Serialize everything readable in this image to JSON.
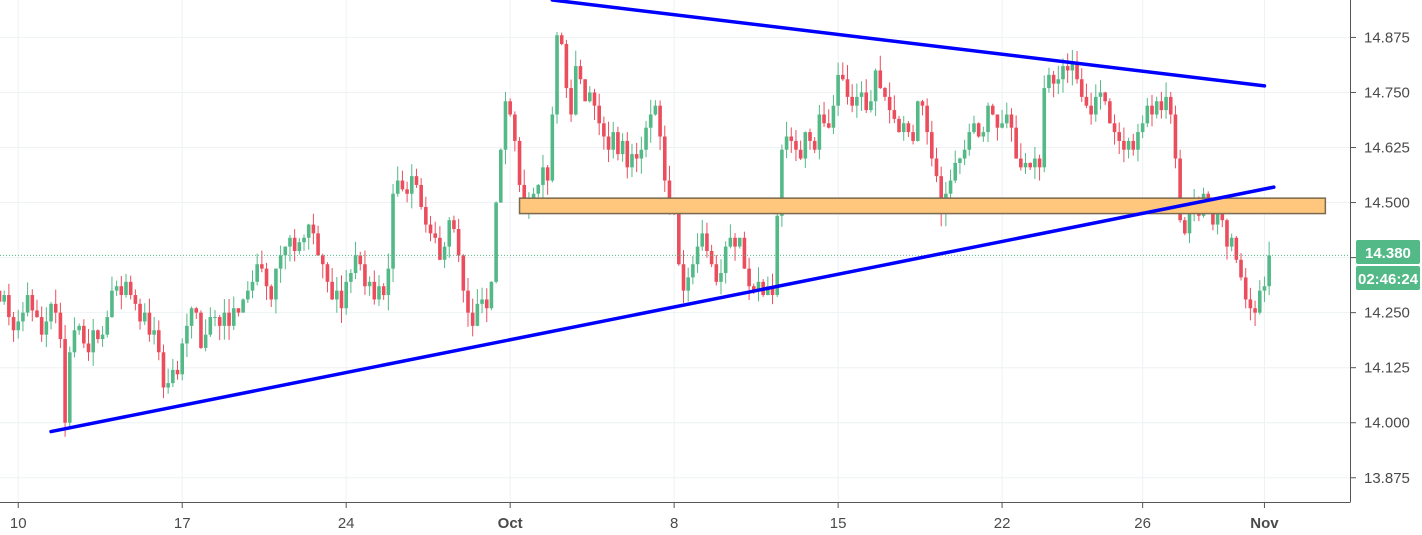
{
  "chart_data": {
    "type": "candlestick",
    "title": "",
    "xlabel": "",
    "ylabel": "",
    "ylim": [
      13.82,
      14.96
    ],
    "y_ticks": [
      "14.875",
      "14.750",
      "14.625",
      "14.500",
      "14.375",
      "14.250",
      "14.125",
      "14.000",
      "13.875"
    ],
    "y_tick_values": [
      14.875,
      14.75,
      14.625,
      14.5,
      14.375,
      14.25,
      14.125,
      14.0,
      13.875
    ],
    "x_ticks": [
      {
        "label": "10",
        "bar": 4,
        "bold": false
      },
      {
        "label": "17",
        "bar": 39,
        "bold": false
      },
      {
        "label": "24",
        "bar": 74,
        "bold": false
      },
      {
        "label": "Oct",
        "bar": 109,
        "bold": true
      },
      {
        "label": "8",
        "bar": 144,
        "bold": false
      },
      {
        "label": "15",
        "bar": 179,
        "bold": false
      },
      {
        "label": "22",
        "bar": 214,
        "bold": false
      },
      {
        "label": "26",
        "bar": 244,
        "bold": false
      },
      {
        "label": "Nov",
        "bar": 270,
        "bold": true
      }
    ],
    "grid": true,
    "last_price": "14.380",
    "last_price_value": 14.38,
    "countdown": "02:46:24",
    "colors": {
      "up": "#53b987",
      "down": "#eb4d5c",
      "trendline": "#0000ff",
      "zone_fill": "#ffc77d",
      "zone_border": "#7a6a4f",
      "grid": "#eef2f5",
      "axis": "#555555",
      "price_line": "#53b987"
    },
    "trendlines": [
      {
        "name": "support",
        "from": {
          "bar": 11,
          "price": 13.98
        },
        "to": {
          "bar": 272,
          "price": 14.535
        }
      },
      {
        "name": "resistance",
        "from": {
          "bar": 118,
          "price": 14.96
        },
        "to": {
          "bar": 270,
          "price": 14.765
        }
      }
    ],
    "zone": {
      "from_bar": 111,
      "to_bar": 283,
      "top": 14.51,
      "bottom": 14.475
    },
    "trend_open": 14.3,
    "trend_closes": [
      14.275,
      14.29,
      14.24,
      14.21,
      14.23,
      14.25,
      14.29,
      14.255,
      14.24,
      14.2,
      14.23,
      14.27,
      14.25,
      14.19,
      14.0,
      14.16,
      14.21,
      14.22,
      14.18,
      14.16,
      14.21,
      14.19,
      14.2,
      14.24,
      14.3,
      14.31,
      14.29,
      14.32,
      14.29,
      14.27,
      14.23,
      14.25,
      14.2,
      14.21,
      14.16,
      14.08,
      14.09,
      14.12,
      14.11,
      14.18,
      14.22,
      14.26,
      14.25,
      14.17,
      14.2,
      14.24,
      14.24,
      14.22,
      14.25,
      14.22,
      14.26,
      14.25,
      14.28,
      14.3,
      14.32,
      14.36,
      14.35,
      14.31,
      14.28,
      14.35,
      14.38,
      14.4,
      14.42,
      14.39,
      14.41,
      14.42,
      14.45,
      14.43,
      14.38,
      14.36,
      14.32,
      14.28,
      14.3,
      14.26,
      14.32,
      14.34,
      14.38,
      14.36,
      14.31,
      14.32,
      14.28,
      14.31,
      14.29,
      14.35,
      14.52,
      14.55,
      14.53,
      14.52,
      14.56,
      14.54,
      14.49,
      14.45,
      14.43,
      14.42,
      14.37,
      14.4,
      14.46,
      14.44,
      14.38,
      14.3,
      14.25,
      14.22,
      14.27,
      14.28,
      14.26,
      14.32,
      14.5,
      14.62,
      14.73,
      14.7,
      14.64,
      14.54,
      14.49,
      14.5,
      14.52,
      14.54,
      14.58,
      14.55,
      14.7,
      14.88,
      14.86,
      14.76,
      14.7,
      14.81,
      14.78,
      14.73,
      14.75,
      14.72,
      14.68,
      14.65,
      14.62,
      14.66,
      14.61,
      14.64,
      14.58,
      14.61,
      14.6,
      14.62,
      14.67,
      14.7,
      14.72,
      14.65,
      14.55,
      14.5,
      14.48,
      14.36,
      14.3,
      14.33,
      14.36,
      14.4,
      14.43,
      14.39,
      14.36,
      14.32,
      14.34,
      14.4,
      14.42,
      14.4,
      14.42,
      14.35,
      14.31,
      14.3,
      14.32,
      14.29,
      14.31,
      14.29,
      14.47,
      14.62,
      14.65,
      14.64,
      14.62,
      14.6,
      14.66,
      14.64,
      14.62,
      14.7,
      14.68,
      14.67,
      14.72,
      14.79,
      14.78,
      14.74,
      14.72,
      14.74,
      14.75,
      14.71,
      14.73,
      14.8,
      14.76,
      14.74,
      14.71,
      14.69,
      14.66,
      14.68,
      14.66,
      14.64,
      14.73,
      14.72,
      14.66,
      14.6,
      14.56,
      14.48,
      14.52,
      14.55,
      14.59,
      14.6,
      14.62,
      14.66,
      14.68,
      14.65,
      14.66,
      14.72,
      14.7,
      14.67,
      14.68,
      14.7,
      14.67,
      14.6,
      14.58,
      14.59,
      14.58,
      14.6,
      14.58,
      14.76,
      14.79,
      14.77,
      14.78,
      14.81,
      14.8,
      14.82,
      14.78,
      14.74,
      14.72,
      14.7,
      14.74,
      14.75,
      14.73,
      14.68,
      14.66,
      14.64,
      14.62,
      14.64,
      14.62,
      14.66,
      14.68,
      14.72,
      14.7,
      14.73,
      14.71,
      14.74,
      14.7,
      14.6,
      14.46,
      14.43,
      14.48,
      14.5,
      14.47,
      14.52,
      14.49,
      14.45,
      14.48,
      14.46,
      14.4,
      14.42,
      14.37,
      14.33,
      14.28,
      14.26,
      14.25,
      14.3,
      14.31,
      14.38
    ],
    "price_ladder": [
      14.875,
      14.75,
      14.625,
      14.5,
      14.375,
      14.25,
      14.125,
      14.0,
      13.875
    ]
  }
}
